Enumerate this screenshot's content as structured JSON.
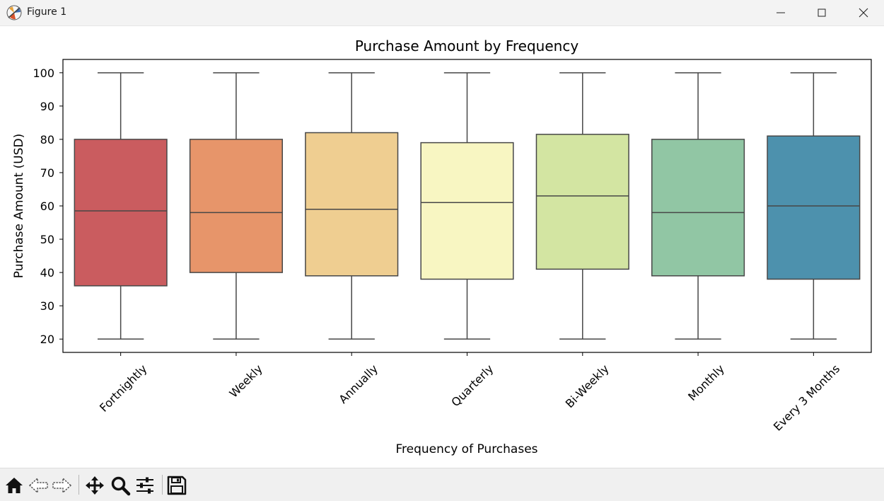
{
  "window": {
    "title": "Figure 1",
    "controls": {
      "minimize": "minimize",
      "maximize": "maximize",
      "close": "close"
    }
  },
  "toolbar": {
    "buttons": [
      "home-icon",
      "back-icon",
      "forward-icon",
      "pan-icon",
      "zoom-icon",
      "configure-icon",
      "save-icon"
    ]
  },
  "chart_data": {
    "type": "box",
    "title": "Purchase Amount by Frequency",
    "xlabel": "Frequency of Purchases",
    "ylabel": "Purchase Amount (USD)",
    "ylim": [
      16,
      104
    ],
    "yticks": [
      20,
      30,
      40,
      50,
      60,
      70,
      80,
      90,
      100
    ],
    "grid": false,
    "legend": "none",
    "categories": [
      "Fortnightly",
      "Weekly",
      "Annually",
      "Quarterly",
      "Bi-Weekly",
      "Monthly",
      "Every 3 Months"
    ],
    "boxes": [
      {
        "category": "Fortnightly",
        "min": 20,
        "q1": 36,
        "median": 58.5,
        "q3": 80,
        "max": 100,
        "color": "#ca5c5f"
      },
      {
        "category": "Weekly",
        "min": 20,
        "q1": 40,
        "median": 58,
        "q3": 80,
        "max": 100,
        "color": "#e7956a"
      },
      {
        "category": "Annually",
        "min": 20,
        "q1": 39,
        "median": 59,
        "q3": 82,
        "max": 100,
        "color": "#efce91"
      },
      {
        "category": "Quarterly",
        "min": 20,
        "q1": 38,
        "median": 61,
        "q3": 79,
        "max": 100,
        "color": "#f8f6c2"
      },
      {
        "category": "Bi-Weekly",
        "min": 20,
        "q1": 41,
        "median": 63,
        "q3": 81.5,
        "max": 100,
        "color": "#d3e5a2"
      },
      {
        "category": "Monthly",
        "min": 20,
        "q1": 39,
        "median": 58,
        "q3": 80,
        "max": 100,
        "color": "#91c6a4"
      },
      {
        "category": "Every 3 Months",
        "min": 20,
        "q1": 38,
        "median": 60,
        "q3": 81,
        "max": 100,
        "color": "#4d91ad"
      }
    ]
  }
}
